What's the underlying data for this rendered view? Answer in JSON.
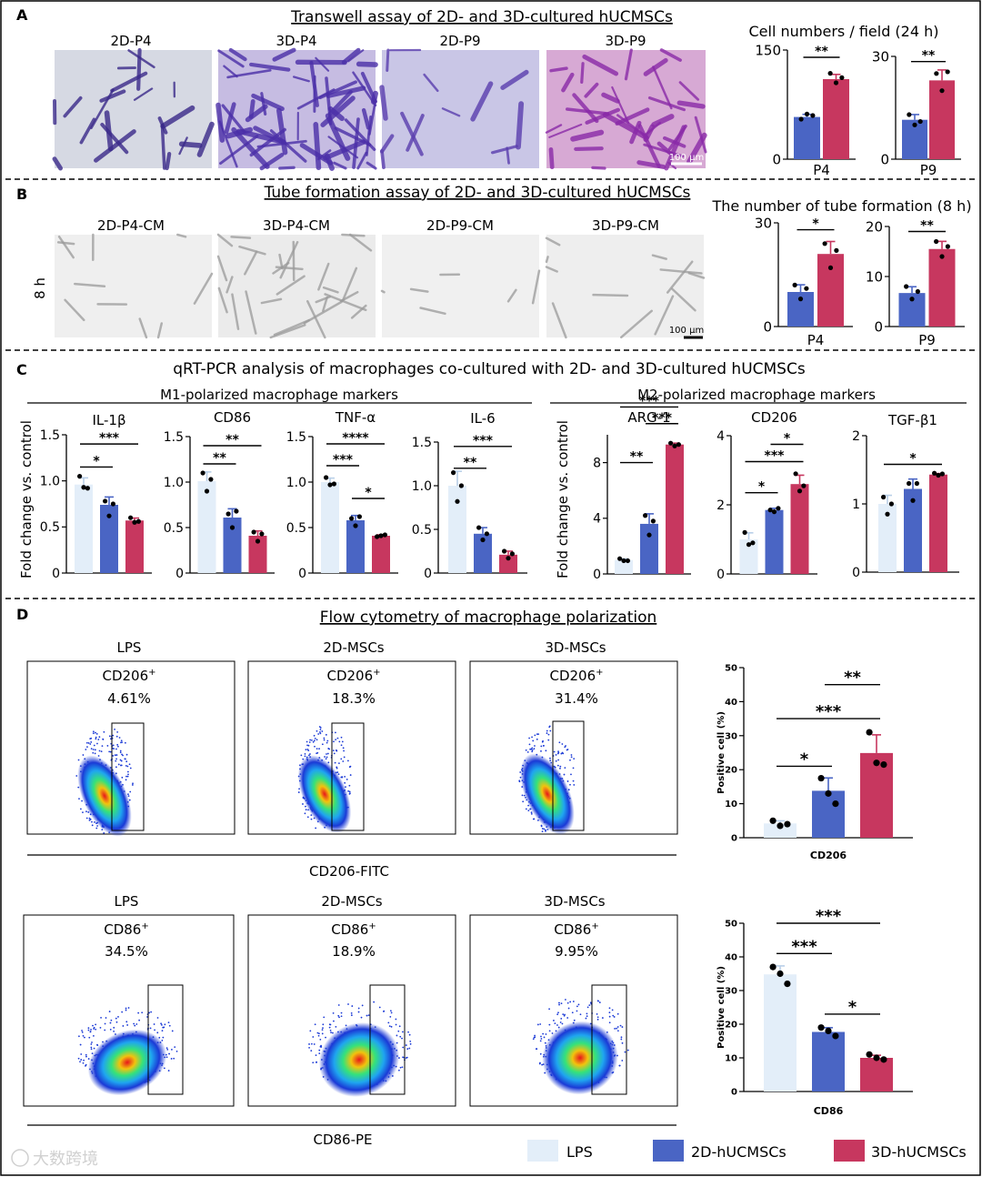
{
  "colors": {
    "lps": "#e3eef9",
    "mid": "#4a65c4",
    "hi": "#c7375f",
    "grid": "#000000",
    "cell_bg": "#d9dce8",
    "tube_bg": "#f1f1f1"
  },
  "panels": {
    "A": {
      "letter": "A",
      "title": "Transwell assay of 2D- and 3D-cultured hUCMSCs",
      "image_labels": [
        "2D-P4",
        "3D-P4",
        "2D-P9",
        "3D-P9"
      ],
      "scale_bar": "100 µm",
      "charts_title": "Cell numbers / field (24 h)"
    },
    "B": {
      "letter": "B",
      "title": "Tube formation assay of 2D- and 3D-cultured hUCMSCs",
      "image_labels": [
        "2D-P4-CM",
        "3D-P4-CM",
        "2D-P9-CM",
        "3D-P9-CM"
      ],
      "row_label": "8 h",
      "scale_bar": "100 µm",
      "charts_title": "The number of tube formation (8 h)"
    },
    "C": {
      "letter": "C",
      "title": "qRT-PCR analysis of macrophages co-cultured with 2D- and 3D-cultured hUCMSCs",
      "m1_title": "M1-polarized macrophage markers",
      "m2_title": "M2-polarized macrophage markers",
      "ylabel": "Fold change vs. control"
    },
    "D": {
      "letter": "D",
      "title": "Flow cytometry of macrophage polarization",
      "row1": {
        "groups": [
          "LPS",
          "2D-MSCs",
          "3D-MSCs"
        ],
        "marker": "CD206",
        "sup": "+",
        "percents": [
          "4.61%",
          "18.3%",
          "31.4%"
        ],
        "axis_label": "CD206-FITC"
      },
      "row2": {
        "groups": [
          "LPS",
          "2D-MSCs",
          "3D-MSCs"
        ],
        "marker": "CD86",
        "sup": "+",
        "percents": [
          "34.5%",
          "18.9%",
          "9.95%"
        ],
        "axis_label": "CD86-PE"
      }
    }
  },
  "legend": [
    "LPS",
    "2D-hUCMSCs",
    "3D-hUCMSCs"
  ],
  "watermark": "大数跨境",
  "chart_data": [
    {
      "id": "a_p4",
      "type": "bar",
      "title": "",
      "categories": [
        "P4"
      ],
      "series": [
        {
          "name": "2D-hUCMSCs",
          "values": [
            58
          ],
          "points": [
            55,
            62,
            60
          ]
        },
        {
          "name": "3D-hUCMSCs",
          "values": [
            110
          ],
          "points": [
            118,
            105,
            112
          ]
        }
      ],
      "ylim": [
        0,
        150
      ],
      "yticks": [
        "0",
        "150"
      ],
      "sig": [
        {
          "a": 0,
          "b": 1,
          "label": "**",
          "level": 140
        }
      ]
    },
    {
      "id": "a_p9",
      "type": "bar",
      "title": "",
      "categories": [
        "P9"
      ],
      "series": [
        {
          "name": "2D-hUCMSCs",
          "values": [
            11.5
          ],
          "points": [
            13,
            10,
            11
          ]
        },
        {
          "name": "3D-hUCMSCs",
          "values": [
            23
          ],
          "points": [
            25,
            20,
            25.5
          ]
        }
      ],
      "ylim": [
        0,
        30
      ],
      "yticks": [
        "0",
        "30"
      ],
      "sig": [
        {
          "a": 0,
          "b": 1,
          "label": "**",
          "level": 28.5
        }
      ]
    },
    {
      "id": "b_p4",
      "type": "bar",
      "title": "",
      "categories": [
        "P4"
      ],
      "series": [
        {
          "name": "2D-hUCMSCs",
          "values": [
            10
          ],
          "points": [
            12,
            8,
            11
          ]
        },
        {
          "name": "3D-hUCMSCs",
          "values": [
            21
          ],
          "points": [
            24,
            17,
            22
          ]
        }
      ],
      "ylim": [
        0,
        30
      ],
      "yticks": [
        "0",
        "30"
      ],
      "sig": [
        {
          "a": 0,
          "b": 1,
          "label": "*",
          "level": 28
        }
      ]
    },
    {
      "id": "b_p9",
      "type": "bar",
      "title": "",
      "categories": [
        "P9"
      ],
      "series": [
        {
          "name": "2D-hUCMSCs",
          "values": [
            6.7
          ],
          "points": [
            8,
            5.5,
            7
          ]
        },
        {
          "name": "3D-hUCMSCs",
          "values": [
            15.5
          ],
          "points": [
            17,
            14,
            16
          ]
        }
      ],
      "ylim": [
        0,
        20
      ],
      "yticks": [
        "0",
        "10",
        "20"
      ],
      "sig": [
        {
          "a": 0,
          "b": 1,
          "label": "**",
          "level": 19
        }
      ]
    },
    {
      "id": "c_il1b",
      "type": "bar",
      "title": "IL-1β",
      "categories": [
        "IL-1β"
      ],
      "series": [
        {
          "name": "LPS",
          "values": [
            0.96
          ],
          "points": [
            1.05,
            0.93,
            0.92
          ]
        },
        {
          "name": "2D-hUCMSCs",
          "values": [
            0.74
          ],
          "points": [
            0.78,
            0.62,
            0.75
          ]
        },
        {
          "name": "3D-hUCMSCs",
          "values": [
            0.57
          ],
          "points": [
            0.6,
            0.55,
            0.56
          ]
        }
      ],
      "ylim": [
        0,
        1.5
      ],
      "yticks": [
        "0",
        "0.5",
        "1.0",
        "1.5"
      ],
      "sig": [
        {
          "a": 0,
          "b": 2,
          "label": "***",
          "level": 1.4
        },
        {
          "a": 0,
          "b": 1,
          "label": "*",
          "level": 1.15
        }
      ]
    },
    {
      "id": "c_cd86",
      "type": "bar",
      "title": "CD86",
      "categories": [
        "CD86"
      ],
      "series": [
        {
          "name": "LPS",
          "values": [
            1.01
          ],
          "points": [
            1.1,
            0.9,
            1.03
          ]
        },
        {
          "name": "2D-hUCMSCs",
          "values": [
            0.61
          ],
          "points": [
            0.65,
            0.5,
            0.68
          ]
        },
        {
          "name": "3D-hUCMSCs",
          "values": [
            0.41
          ],
          "points": [
            0.45,
            0.35,
            0.43
          ]
        }
      ],
      "ylim": [
        0,
        1.5
      ],
      "yticks": [
        "0",
        "0.5",
        "1.0",
        "1.5"
      ],
      "sig": [
        {
          "a": 0,
          "b": 2,
          "label": "**",
          "level": 1.4
        },
        {
          "a": 0,
          "b": 1,
          "label": "**",
          "level": 1.2
        }
      ]
    },
    {
      "id": "c_tnfa",
      "type": "bar",
      "title": "TNF-α",
      "categories": [
        "TNF-α"
      ],
      "series": [
        {
          "name": "LPS",
          "values": [
            1.0
          ],
          "points": [
            1.05,
            0.97,
            0.98
          ]
        },
        {
          "name": "2D-hUCMSCs",
          "values": [
            0.58
          ],
          "points": [
            0.6,
            0.52,
            0.62
          ]
        },
        {
          "name": "3D-hUCMSCs",
          "values": [
            0.41
          ],
          "points": [
            0.4,
            0.41,
            0.42
          ]
        }
      ],
      "ylim": [
        0,
        1.5
      ],
      "yticks": [
        "0",
        "0.5",
        "1.0",
        "1.5"
      ],
      "sig": [
        {
          "a": 0,
          "b": 2,
          "label": "****",
          "level": 1.42
        },
        {
          "a": 0,
          "b": 1,
          "label": "***",
          "level": 1.18
        },
        {
          "a": 1,
          "b": 2,
          "label": "*",
          "level": 0.82
        }
      ]
    },
    {
      "id": "c_il6",
      "type": "bar",
      "title": "IL-6",
      "categories": [
        "IL-6"
      ],
      "series": [
        {
          "name": "LPS",
          "values": [
            1.0
          ],
          "points": [
            1.15,
            0.82,
            1.0
          ]
        },
        {
          "name": "2D-hUCMSCs",
          "values": [
            0.45
          ],
          "points": [
            0.52,
            0.38,
            0.45
          ]
        },
        {
          "name": "3D-hUCMSCs",
          "values": [
            0.21
          ],
          "points": [
            0.25,
            0.17,
            0.22
          ]
        }
      ],
      "ylim": [
        0,
        1.5
      ],
      "yticks": [
        "0",
        "0.5",
        "1.0",
        "1.5"
      ],
      "sig": [
        {
          "a": 0,
          "b": 2,
          "label": "***",
          "level": 1.45
        },
        {
          "a": 0,
          "b": 1,
          "label": "**",
          "level": 1.2
        }
      ]
    },
    {
      "id": "c_arg1",
      "type": "bar",
      "title": "ARG-1",
      "categories": [
        "ARG-1"
      ],
      "series": [
        {
          "name": "LPS",
          "values": [
            1.0
          ],
          "points": [
            1.1,
            0.95,
            0.95
          ]
        },
        {
          "name": "2D-hUCMSCs",
          "values": [
            3.6
          ],
          "points": [
            4.2,
            2.8,
            3.8
          ]
        },
        {
          "name": "3D-hUCMSCs",
          "values": [
            9.3
          ],
          "points": [
            9.4,
            9.2,
            9.3
          ]
        }
      ],
      "ylim": [
        0,
        10
      ],
      "yticks": [
        "0",
        "4",
        "8"
      ],
      "sig": [
        {
          "a": 0,
          "b": 2,
          "label": "***",
          "level": 12
        },
        {
          "a": 1,
          "b": 2,
          "label": "***",
          "level": 10.8
        },
        {
          "a": 0,
          "b": 1,
          "label": "**",
          "level": 8
        }
      ]
    },
    {
      "id": "c_cd206",
      "type": "bar",
      "title": "CD206",
      "categories": [
        "CD206"
      ],
      "series": [
        {
          "name": "LPS",
          "values": [
            1.0
          ],
          "points": [
            1.2,
            0.85,
            0.9
          ]
        },
        {
          "name": "2D-hUCMSCs",
          "values": [
            1.85
          ],
          "points": [
            1.85,
            1.8,
            1.9
          ]
        },
        {
          "name": "3D-hUCMSCs",
          "values": [
            2.6
          ],
          "points": [
            2.9,
            2.4,
            2.55
          ]
        }
      ],
      "ylim": [
        0,
        4
      ],
      "yticks": [
        "0",
        "2",
        "4"
      ],
      "sig": [
        {
          "a": 1,
          "b": 2,
          "label": "*",
          "level": 3.75
        },
        {
          "a": 0,
          "b": 2,
          "label": "***",
          "level": 3.25
        },
        {
          "a": 0,
          "b": 1,
          "label": "*",
          "level": 2.35
        }
      ]
    },
    {
      "id": "c_tgfb1",
      "type": "bar",
      "title": "TGF-β1",
      "categories": [
        "TGF-β1"
      ],
      "series": [
        {
          "name": "LPS",
          "values": [
            1.0
          ],
          "points": [
            1.1,
            0.85,
            1.0
          ]
        },
        {
          "name": "2D-hUCMSCs",
          "values": [
            1.22
          ],
          "points": [
            1.3,
            1.05,
            1.3
          ]
        },
        {
          "name": "3D-hUCMSCs",
          "values": [
            1.43
          ],
          "points": [
            1.45,
            1.42,
            1.44
          ]
        }
      ],
      "ylim": [
        0,
        2
      ],
      "yticks": [
        "0",
        "1",
        "2"
      ],
      "sig": [
        {
          "a": 0,
          "b": 2,
          "label": "*",
          "level": 1.58
        }
      ]
    },
    {
      "id": "d_cd206",
      "type": "bar",
      "title": "CD206",
      "ylabel": "Positive cell (%)",
      "categories": [
        "CD206"
      ],
      "series": [
        {
          "name": "LPS",
          "values": [
            4.2
          ],
          "points": [
            5,
            3.5,
            4
          ]
        },
        {
          "name": "2D-hUCMSCs",
          "values": [
            13.8
          ],
          "points": [
            17.5,
            13,
            10
          ]
        },
        {
          "name": "3D-hUCMSCs",
          "values": [
            24.9
          ],
          "points": [
            31,
            22,
            21.5
          ]
        }
      ],
      "ylim": [
        0,
        50
      ],
      "yticks": [
        "0",
        "10",
        "20",
        "30",
        "40",
        "50"
      ],
      "sig": [
        {
          "a": 1,
          "b": 2,
          "label": "**",
          "level": 45
        },
        {
          "a": 0,
          "b": 2,
          "label": "***",
          "level": 35
        },
        {
          "a": 0,
          "b": 1,
          "label": "*",
          "level": 21
        }
      ]
    },
    {
      "id": "d_cd86",
      "type": "bar",
      "title": "CD86",
      "ylabel": "Positive cell (%)",
      "categories": [
        "CD86"
      ],
      "series": [
        {
          "name": "LPS",
          "values": [
            34.8
          ],
          "points": [
            37,
            35,
            32
          ]
        },
        {
          "name": "2D-hUCMSCs",
          "values": [
            17.7
          ],
          "points": [
            19,
            18,
            16.5
          ]
        },
        {
          "name": "3D-hUCMSCs",
          "values": [
            10
          ],
          "points": [
            11,
            10,
            9.5
          ]
        }
      ],
      "ylim": [
        0,
        50
      ],
      "yticks": [
        "0",
        "10",
        "20",
        "30",
        "40",
        "50"
      ],
      "sig": [
        {
          "a": 0,
          "b": 2,
          "label": "***",
          "level": 50
        },
        {
          "a": 0,
          "b": 1,
          "label": "***",
          "level": 41
        },
        {
          "a": 1,
          "b": 2,
          "label": "*",
          "level": 23
        }
      ]
    }
  ]
}
